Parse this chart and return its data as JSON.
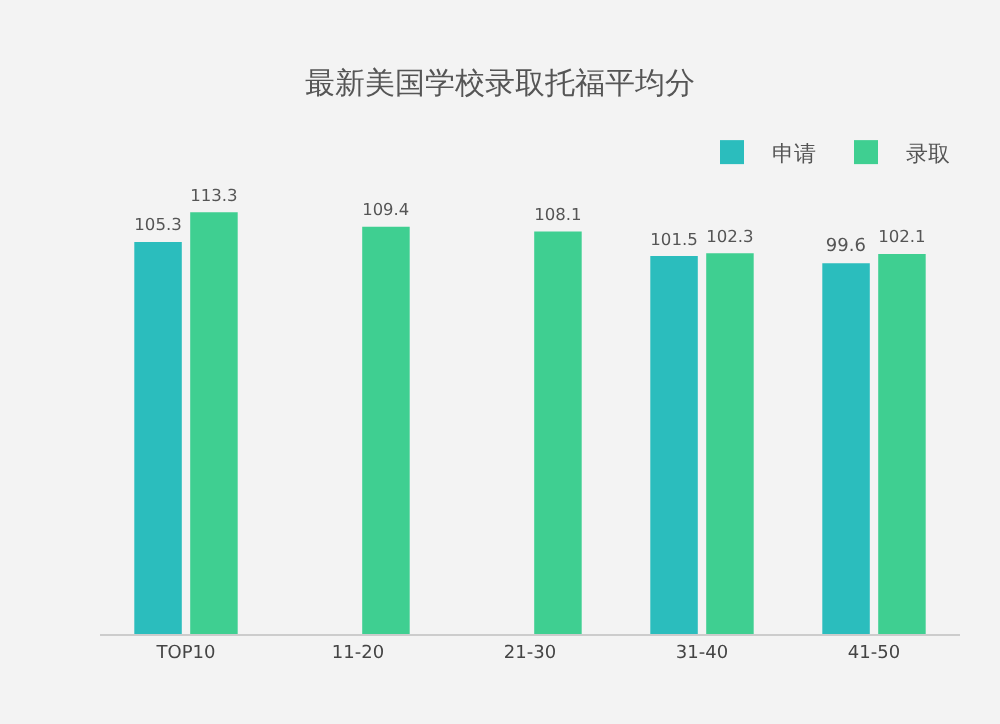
{
  "chart_data": {
    "type": "bar",
    "title": "最新美国学校录取托福平均分",
    "categories": [
      "TOP10",
      "11-20",
      "21-30",
      "31-40",
      "41-50"
    ],
    "series": [
      {
        "name": "申请",
        "color": "#2bbdbd",
        "values": [
          105.3,
          null,
          null,
          101.5,
          99.6
        ]
      },
      {
        "name": "录取",
        "color": "#3fcf91",
        "values": [
          113.3,
          109.4,
          108.1,
          102.3,
          102.1
        ]
      }
    ],
    "data_labels": true,
    "legend": "top right",
    "grid": false
  }
}
